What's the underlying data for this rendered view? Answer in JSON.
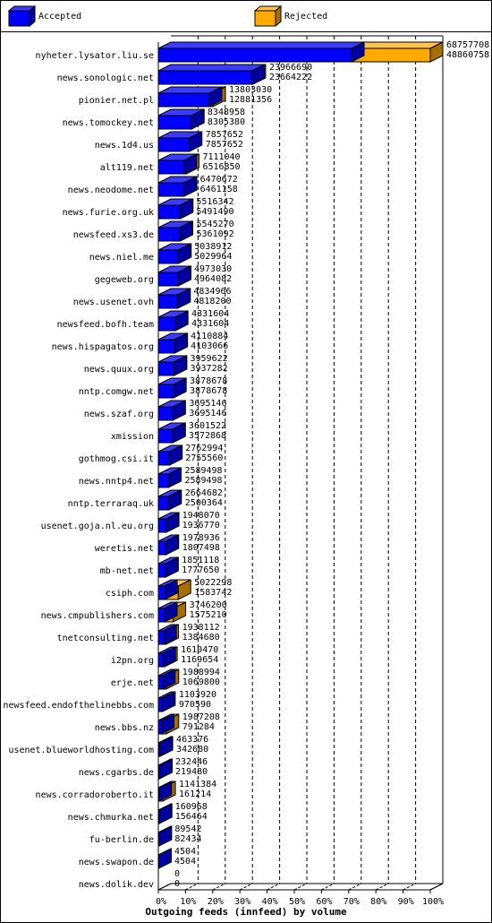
{
  "legend": {
    "accepted": {
      "label": "Accepted",
      "color": "#0000ff"
    },
    "rejected": {
      "label": "Rejected",
      "color": "#ffaa00"
    }
  },
  "chart_data": {
    "type": "bar",
    "orientation": "horizontal",
    "stacked": true,
    "three_d": true,
    "xlabel": "Outgoing feeds (innfeed) by volume",
    "xlim": [
      0,
      100
    ],
    "xticks": [
      "0%",
      "10%",
      "20%",
      "30%",
      "40%",
      "50%",
      "60%",
      "70%",
      "80%",
      "90%",
      "100%"
    ],
    "grid": "vertical dashed",
    "legend_position": "top",
    "rows": [
      {
        "name": "nyheter.lysator.liu.se",
        "offered": 68757708,
        "accepted": 48860758
      },
      {
        "name": "news.sonologic.net",
        "offered": 23966690,
        "accepted": 23664222
      },
      {
        "name": "pionier.net.pl",
        "offered": 13803030,
        "accepted": 12881356
      },
      {
        "name": "news.tomockey.net",
        "offered": 8348958,
        "accepted": 8305380
      },
      {
        "name": "news.1d4.us",
        "offered": 7857652,
        "accepted": 7857652
      },
      {
        "name": "alt119.net",
        "offered": 7111040,
        "accepted": 6516850
      },
      {
        "name": "news.neodome.net",
        "offered": 6470672,
        "accepted": 6461158
      },
      {
        "name": "news.furie.org.uk",
        "offered": 5516342,
        "accepted": 5491490
      },
      {
        "name": "newsfeed.xs3.de",
        "offered": 5545270,
        "accepted": 5361092
      },
      {
        "name": "news.niel.me",
        "offered": 5038912,
        "accepted": 5029964
      },
      {
        "name": "gegeweb.org",
        "offered": 4973030,
        "accepted": 4964082
      },
      {
        "name": "news.usenet.ovh",
        "offered": 4834966,
        "accepted": 4818200
      },
      {
        "name": "newsfeed.bofh.team",
        "offered": 4331604,
        "accepted": 4331604
      },
      {
        "name": "news.hispagatos.org",
        "offered": 4110884,
        "accepted": 4103066
      },
      {
        "name": "news.quux.org",
        "offered": 3959622,
        "accepted": 3937282
      },
      {
        "name": "nntp.comgw.net",
        "offered": 3878678,
        "accepted": 3878678
      },
      {
        "name": "news.szaf.org",
        "offered": 3695146,
        "accepted": 3695146
      },
      {
        "name": "xmission",
        "offered": 3601522,
        "accepted": 3572868
      },
      {
        "name": "gothmog.csi.it",
        "offered": 2762994,
        "accepted": 2755560
      },
      {
        "name": "news.nntp4.net",
        "offered": 2589498,
        "accepted": 2589498
      },
      {
        "name": "nntp.terraraq.uk",
        "offered": 2664682,
        "accepted": 2500364
      },
      {
        "name": "usenet.goja.nl.eu.org",
        "offered": 1948070,
        "accepted": 1936770
      },
      {
        "name": "weretis.net",
        "offered": 1978936,
        "accepted": 1807498
      },
      {
        "name": "mb-net.net",
        "offered": 1851118,
        "accepted": 1777650
      },
      {
        "name": "csiph.com",
        "offered": 5022298,
        "accepted": 1583742
      },
      {
        "name": "news.cmpublishers.com",
        "offered": 3746200,
        "accepted": 1575210
      },
      {
        "name": "tnetconsulting.net",
        "offered": 1938112,
        "accepted": 1384680
      },
      {
        "name": "i2pn.org",
        "offered": 1610470,
        "accepted": 1169654
      },
      {
        "name": "erje.net",
        "offered": 1988994,
        "accepted": 1069800
      },
      {
        "name": "newsfeed.endofthelinebbs.com",
        "offered": 1103920,
        "accepted": 970590
      },
      {
        "name": "news.bbs.nz",
        "offered": 1987208,
        "accepted": 791284
      },
      {
        "name": "usenet.blueworldhosting.com",
        "offered": 463376,
        "accepted": 342680
      },
      {
        "name": "news.cgarbs.de",
        "offered": 232446,
        "accepted": 219480
      },
      {
        "name": "news.corradoroberto.it",
        "offered": 1141384,
        "accepted": 161214
      },
      {
        "name": "news.chmurka.net",
        "offered": 160968,
        "accepted": 156464
      },
      {
        "name": "fu-berlin.de",
        "offered": 89542,
        "accepted": 82434
      },
      {
        "name": "news.swapon.de",
        "offered": 4504,
        "accepted": 4504
      },
      {
        "name": "news.dolik.dev",
        "offered": 0,
        "accepted": 0
      }
    ]
  }
}
